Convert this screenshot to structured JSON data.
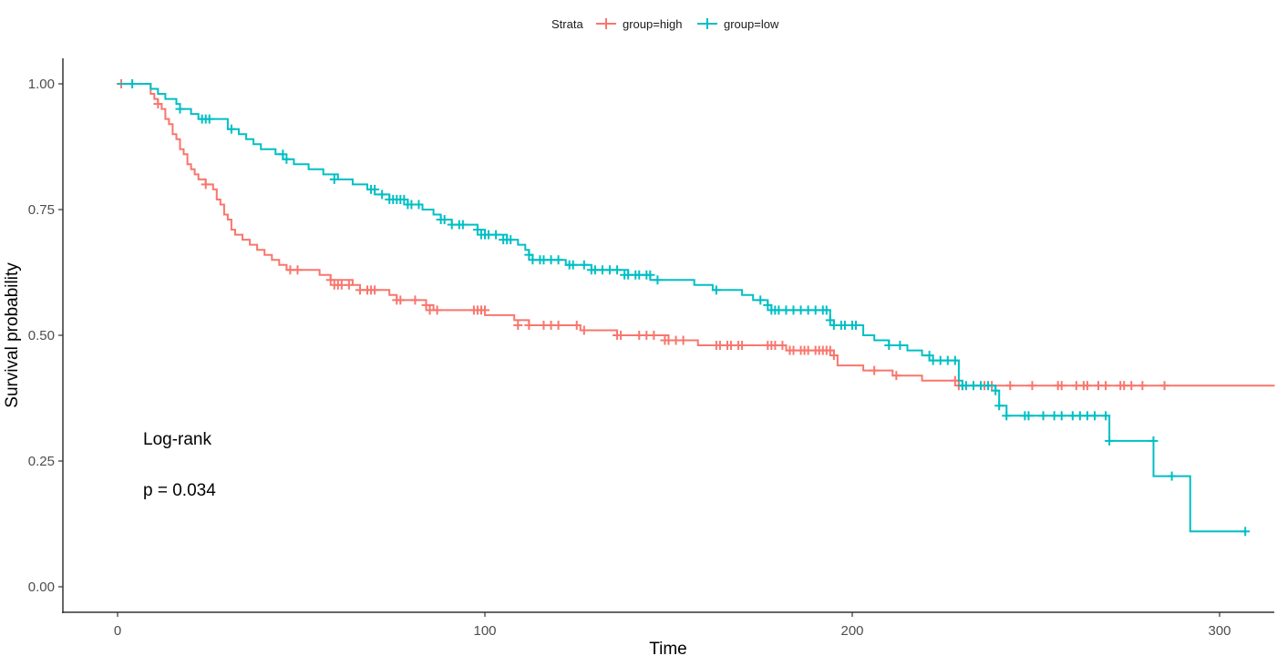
{
  "chart_data": {
    "type": "line",
    "title": "",
    "xlabel": "Time",
    "ylabel": "Survival probability",
    "xlim": [
      0,
      315
    ],
    "ylim": [
      0,
      1
    ],
    "x_ticks": [
      0,
      100,
      200,
      300
    ],
    "y_ticks": [
      0,
      0.25,
      0.5,
      0.75,
      1
    ],
    "y_tick_labels": [
      "0.00",
      "0.25",
      "0.50",
      "0.75",
      "1.00"
    ],
    "grid": false,
    "legend": {
      "title": "Strata",
      "placement": "top-center"
    },
    "annotations": [
      "Log-rank",
      "p = 0.034"
    ],
    "series": [
      {
        "name": "group=high",
        "color": "#F8766D",
        "steps": [
          [
            0,
            1.0
          ],
          [
            9,
            0.98
          ],
          [
            10,
            0.97
          ],
          [
            11,
            0.96
          ],
          [
            12,
            0.95
          ],
          [
            13,
            0.93
          ],
          [
            14,
            0.92
          ],
          [
            15,
            0.9
          ],
          [
            16,
            0.89
          ],
          [
            17,
            0.87
          ],
          [
            18,
            0.86
          ],
          [
            19,
            0.84
          ],
          [
            20,
            0.83
          ],
          [
            21,
            0.82
          ],
          [
            22,
            0.81
          ],
          [
            24,
            0.8
          ],
          [
            26,
            0.79
          ],
          [
            27,
            0.77
          ],
          [
            28,
            0.76
          ],
          [
            29,
            0.74
          ],
          [
            30,
            0.73
          ],
          [
            31,
            0.71
          ],
          [
            32,
            0.7
          ],
          [
            34,
            0.69
          ],
          [
            36,
            0.68
          ],
          [
            38,
            0.67
          ],
          [
            40,
            0.66
          ],
          [
            42,
            0.65
          ],
          [
            44,
            0.64
          ],
          [
            46,
            0.63
          ],
          [
            55,
            0.62
          ],
          [
            58,
            0.61
          ],
          [
            64,
            0.6
          ],
          [
            66,
            0.59
          ],
          [
            74,
            0.58
          ],
          [
            76,
            0.57
          ],
          [
            84,
            0.56
          ],
          [
            86,
            0.55
          ],
          [
            100,
            0.54
          ],
          [
            108,
            0.53
          ],
          [
            112,
            0.52
          ],
          [
            126,
            0.51
          ],
          [
            136,
            0.5
          ],
          [
            150,
            0.49
          ],
          [
            158,
            0.48
          ],
          [
            182,
            0.47
          ],
          [
            195,
            0.46
          ],
          [
            196,
            0.44
          ],
          [
            203,
            0.43
          ],
          [
            211,
            0.42
          ],
          [
            219,
            0.41
          ],
          [
            229,
            0.4
          ],
          [
            315,
            0.4
          ]
        ],
        "censor": [
          [
            1,
            1.0
          ],
          [
            11,
            0.96
          ],
          [
            24,
            0.8
          ],
          [
            47,
            0.63
          ],
          [
            49,
            0.63
          ],
          [
            58,
            0.61
          ],
          [
            59,
            0.6
          ],
          [
            60,
            0.6
          ],
          [
            61,
            0.6
          ],
          [
            63,
            0.6
          ],
          [
            66,
            0.59
          ],
          [
            68,
            0.59
          ],
          [
            69,
            0.59
          ],
          [
            70,
            0.59
          ],
          [
            76,
            0.57
          ],
          [
            77,
            0.57
          ],
          [
            81,
            0.57
          ],
          [
            84,
            0.56
          ],
          [
            85,
            0.55
          ],
          [
            87,
            0.55
          ],
          [
            97,
            0.55
          ],
          [
            98,
            0.55
          ],
          [
            99,
            0.55
          ],
          [
            100,
            0.55
          ],
          [
            109,
            0.52
          ],
          [
            112,
            0.52
          ],
          [
            116,
            0.52
          ],
          [
            118,
            0.52
          ],
          [
            120,
            0.52
          ],
          [
            125,
            0.52
          ],
          [
            127,
            0.51
          ],
          [
            136,
            0.5
          ],
          [
            137,
            0.5
          ],
          [
            142,
            0.5
          ],
          [
            144,
            0.5
          ],
          [
            146,
            0.5
          ],
          [
            149,
            0.49
          ],
          [
            150,
            0.49
          ],
          [
            152,
            0.49
          ],
          [
            154,
            0.49
          ],
          [
            163,
            0.48
          ],
          [
            164,
            0.48
          ],
          [
            166,
            0.48
          ],
          [
            167,
            0.48
          ],
          [
            169,
            0.48
          ],
          [
            170,
            0.48
          ],
          [
            177,
            0.48
          ],
          [
            178,
            0.48
          ],
          [
            179,
            0.48
          ],
          [
            181,
            0.48
          ],
          [
            183,
            0.47
          ],
          [
            184,
            0.47
          ],
          [
            186,
            0.47
          ],
          [
            187,
            0.47
          ],
          [
            188,
            0.47
          ],
          [
            190,
            0.47
          ],
          [
            191,
            0.47
          ],
          [
            192,
            0.47
          ],
          [
            193,
            0.47
          ],
          [
            194,
            0.47
          ],
          [
            195,
            0.46
          ],
          [
            206,
            0.43
          ],
          [
            212,
            0.42
          ],
          [
            228,
            0.41
          ],
          [
            229,
            0.4
          ],
          [
            230,
            0.4
          ],
          [
            236,
            0.4
          ],
          [
            238,
            0.4
          ],
          [
            243,
            0.4
          ],
          [
            249,
            0.4
          ],
          [
            256,
            0.4
          ],
          [
            257,
            0.4
          ],
          [
            261,
            0.4
          ],
          [
            263,
            0.4
          ],
          [
            264,
            0.4
          ],
          [
            267,
            0.4
          ],
          [
            269,
            0.4
          ],
          [
            273,
            0.4
          ],
          [
            274,
            0.4
          ],
          [
            276,
            0.4
          ],
          [
            279,
            0.4
          ],
          [
            285,
            0.4
          ]
        ]
      },
      {
        "name": "group=low",
        "color": "#00BFC4",
        "steps": [
          [
            0,
            1.0
          ],
          [
            9,
            0.99
          ],
          [
            11,
            0.98
          ],
          [
            13,
            0.97
          ],
          [
            16,
            0.96
          ],
          [
            17,
            0.95
          ],
          [
            20,
            0.94
          ],
          [
            22,
            0.93
          ],
          [
            30,
            0.91
          ],
          [
            33,
            0.9
          ],
          [
            35,
            0.89
          ],
          [
            37,
            0.88
          ],
          [
            39,
            0.87
          ],
          [
            43,
            0.86
          ],
          [
            45,
            0.85
          ],
          [
            48,
            0.84
          ],
          [
            52,
            0.83
          ],
          [
            56,
            0.82
          ],
          [
            60,
            0.81
          ],
          [
            64,
            0.8
          ],
          [
            68,
            0.79
          ],
          [
            70,
            0.78
          ],
          [
            74,
            0.77
          ],
          [
            79,
            0.76
          ],
          [
            83,
            0.75
          ],
          [
            86,
            0.74
          ],
          [
            88,
            0.73
          ],
          [
            91,
            0.72
          ],
          [
            98,
            0.71
          ],
          [
            100,
            0.7
          ],
          [
            106,
            0.69
          ],
          [
            109,
            0.68
          ],
          [
            111,
            0.67
          ],
          [
            112,
            0.66
          ],
          [
            113,
            0.65
          ],
          [
            122,
            0.64
          ],
          [
            129,
            0.63
          ],
          [
            139,
            0.62
          ],
          [
            145,
            0.61
          ],
          [
            157,
            0.6
          ],
          [
            162,
            0.59
          ],
          [
            170,
            0.58
          ],
          [
            173,
            0.57
          ],
          [
            177,
            0.56
          ],
          [
            178,
            0.55
          ],
          [
            194,
            0.53
          ],
          [
            195,
            0.52
          ],
          [
            203,
            0.5
          ],
          [
            206,
            0.49
          ],
          [
            210,
            0.48
          ],
          [
            215,
            0.47
          ],
          [
            219,
            0.46
          ],
          [
            221,
            0.45
          ],
          [
            229,
            0.41
          ],
          [
            230,
            0.4
          ],
          [
            239,
            0.39
          ],
          [
            240,
            0.36
          ],
          [
            242,
            0.34
          ],
          [
            270,
            0.29
          ],
          [
            282,
            0.22
          ],
          [
            292,
            0.11
          ],
          [
            307,
            0.11
          ]
        ],
        "censor": [
          [
            4,
            1.0
          ],
          [
            17,
            0.95
          ],
          [
            23,
            0.93
          ],
          [
            24,
            0.93
          ],
          [
            25,
            0.93
          ],
          [
            31,
            0.91
          ],
          [
            45,
            0.86
          ],
          [
            46,
            0.85
          ],
          [
            59,
            0.81
          ],
          [
            69,
            0.79
          ],
          [
            70,
            0.79
          ],
          [
            72,
            0.78
          ],
          [
            74,
            0.77
          ],
          [
            75,
            0.77
          ],
          [
            76,
            0.77
          ],
          [
            77,
            0.77
          ],
          [
            78,
            0.77
          ],
          [
            79,
            0.76
          ],
          [
            80,
            0.76
          ],
          [
            82,
            0.76
          ],
          [
            88,
            0.73
          ],
          [
            89,
            0.73
          ],
          [
            91,
            0.72
          ],
          [
            93,
            0.72
          ],
          [
            94,
            0.72
          ],
          [
            98,
            0.71
          ],
          [
            99,
            0.7
          ],
          [
            100,
            0.7
          ],
          [
            101,
            0.7
          ],
          [
            103,
            0.7
          ],
          [
            105,
            0.69
          ],
          [
            106,
            0.69
          ],
          [
            107,
            0.69
          ],
          [
            112,
            0.66
          ],
          [
            113,
            0.65
          ],
          [
            115,
            0.65
          ],
          [
            116,
            0.65
          ],
          [
            118,
            0.65
          ],
          [
            120,
            0.65
          ],
          [
            123,
            0.64
          ],
          [
            124,
            0.64
          ],
          [
            127,
            0.64
          ],
          [
            129,
            0.63
          ],
          [
            130,
            0.63
          ],
          [
            132,
            0.63
          ],
          [
            134,
            0.63
          ],
          [
            136,
            0.63
          ],
          [
            138,
            0.62
          ],
          [
            139,
            0.62
          ],
          [
            141,
            0.62
          ],
          [
            142,
            0.62
          ],
          [
            144,
            0.62
          ],
          [
            145,
            0.62
          ],
          [
            147,
            0.61
          ],
          [
            163,
            0.59
          ],
          [
            175,
            0.57
          ],
          [
            177,
            0.56
          ],
          [
            178,
            0.55
          ],
          [
            179,
            0.55
          ],
          [
            180,
            0.55
          ],
          [
            182,
            0.55
          ],
          [
            184,
            0.55
          ],
          [
            186,
            0.55
          ],
          [
            188,
            0.55
          ],
          [
            190,
            0.55
          ],
          [
            192,
            0.55
          ],
          [
            193,
            0.55
          ],
          [
            194,
            0.53
          ],
          [
            195,
            0.52
          ],
          [
            197,
            0.52
          ],
          [
            198,
            0.52
          ],
          [
            200,
            0.52
          ],
          [
            201,
            0.52
          ],
          [
            210,
            0.48
          ],
          [
            213,
            0.48
          ],
          [
            221,
            0.46
          ],
          [
            222,
            0.45
          ],
          [
            224,
            0.45
          ],
          [
            226,
            0.45
          ],
          [
            228,
            0.45
          ],
          [
            230,
            0.4
          ],
          [
            231,
            0.4
          ],
          [
            233,
            0.4
          ],
          [
            235,
            0.4
          ],
          [
            237,
            0.4
          ],
          [
            239,
            0.39
          ],
          [
            240,
            0.36
          ],
          [
            242,
            0.34
          ],
          [
            247,
            0.34
          ],
          [
            248,
            0.34
          ],
          [
            252,
            0.34
          ],
          [
            255,
            0.34
          ],
          [
            257,
            0.34
          ],
          [
            260,
            0.34
          ],
          [
            262,
            0.34
          ],
          [
            264,
            0.34
          ],
          [
            266,
            0.34
          ],
          [
            269,
            0.34
          ],
          [
            270,
            0.29
          ],
          [
            282,
            0.29
          ],
          [
            287,
            0.22
          ],
          [
            307,
            0.11
          ]
        ]
      }
    ]
  }
}
